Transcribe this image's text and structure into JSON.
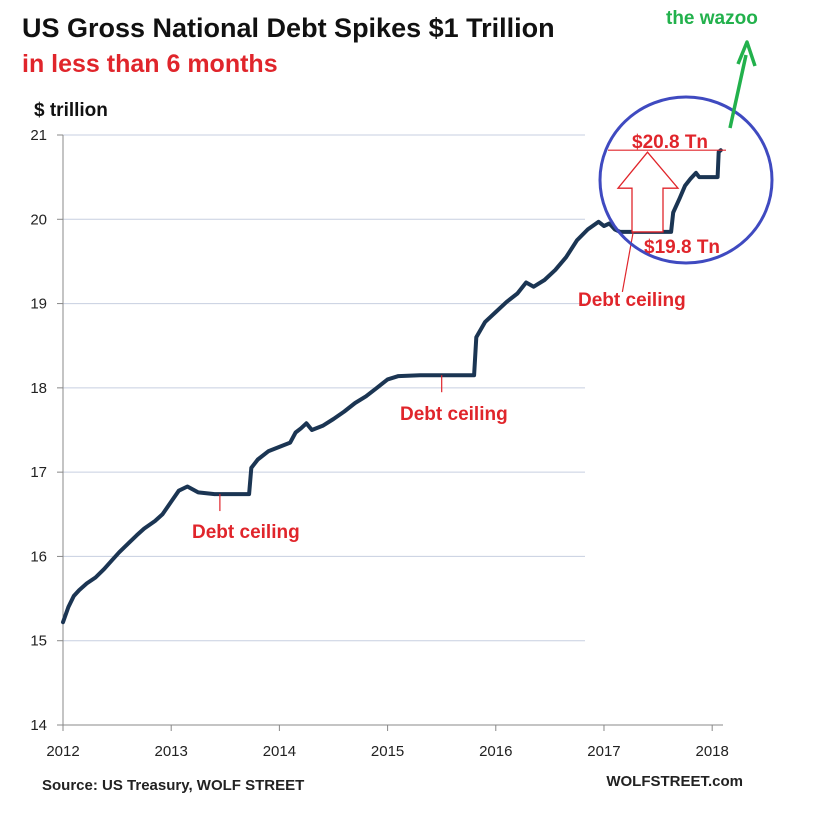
{
  "chart_data": {
    "type": "line",
    "title": "US Gross National Debt Spikes $1 Trillion",
    "subtitle": "in less than 6 months",
    "ylabel": "$ trillion",
    "xlabel": "",
    "xlim": [
      2012,
      2018.1
    ],
    "ylim": [
      14,
      21
    ],
    "x_ticks": [
      "2012",
      "2013",
      "2014",
      "2015",
      "2016",
      "2017",
      "2018"
    ],
    "y_ticks": [
      "14",
      "15",
      "16",
      "17",
      "18",
      "19",
      "20",
      "21"
    ],
    "grid": "horizontal",
    "legend": "none",
    "series": [
      {
        "points": [
          [
            2012.0,
            15.22
          ],
          [
            2012.05,
            15.4
          ],
          [
            2012.1,
            15.53
          ],
          [
            2012.15,
            15.6
          ],
          [
            2012.22,
            15.68
          ],
          [
            2012.3,
            15.75
          ],
          [
            2012.38,
            15.85
          ],
          [
            2012.45,
            15.95
          ],
          [
            2012.52,
            16.05
          ],
          [
            2012.6,
            16.15
          ],
          [
            2012.68,
            16.25
          ],
          [
            2012.75,
            16.33
          ],
          [
            2012.85,
            16.42
          ],
          [
            2012.92,
            16.5
          ],
          [
            2013.0,
            16.65
          ],
          [
            2013.07,
            16.78
          ],
          [
            2013.15,
            16.83
          ],
          [
            2013.25,
            16.76
          ],
          [
            2013.4,
            16.74
          ],
          [
            2013.6,
            16.74
          ],
          [
            2013.72,
            16.74
          ],
          [
            2013.74,
            17.05
          ],
          [
            2013.8,
            17.15
          ],
          [
            2013.9,
            17.25
          ],
          [
            2014.0,
            17.3
          ],
          [
            2014.1,
            17.35
          ],
          [
            2014.15,
            17.47
          ],
          [
            2014.2,
            17.52
          ],
          [
            2014.25,
            17.58
          ],
          [
            2014.3,
            17.5
          ],
          [
            2014.4,
            17.55
          ],
          [
            2014.5,
            17.63
          ],
          [
            2014.6,
            17.72
          ],
          [
            2014.7,
            17.82
          ],
          [
            2014.8,
            17.9
          ],
          [
            2014.9,
            18.0
          ],
          [
            2015.0,
            18.1
          ],
          [
            2015.1,
            18.14
          ],
          [
            2015.3,
            18.15
          ],
          [
            2015.6,
            18.15
          ],
          [
            2015.8,
            18.15
          ],
          [
            2015.82,
            18.6
          ],
          [
            2015.9,
            18.78
          ],
          [
            2016.0,
            18.9
          ],
          [
            2016.1,
            19.02
          ],
          [
            2016.2,
            19.12
          ],
          [
            2016.28,
            19.25
          ],
          [
            2016.35,
            19.2
          ],
          [
            2016.45,
            19.28
          ],
          [
            2016.55,
            19.4
          ],
          [
            2016.65,
            19.55
          ],
          [
            2016.75,
            19.75
          ],
          [
            2016.85,
            19.88
          ],
          [
            2016.95,
            19.97
          ],
          [
            2017.0,
            19.92
          ],
          [
            2017.05,
            19.95
          ],
          [
            2017.1,
            19.88
          ],
          [
            2017.15,
            19.85
          ],
          [
            2017.4,
            19.85
          ],
          [
            2017.62,
            19.85
          ],
          [
            2017.64,
            20.08
          ],
          [
            2017.7,
            20.25
          ],
          [
            2017.75,
            20.4
          ],
          [
            2017.8,
            20.48
          ],
          [
            2017.85,
            20.55
          ],
          [
            2017.88,
            20.5
          ],
          [
            2017.95,
            20.5
          ],
          [
            2018.05,
            20.5
          ],
          [
            2018.06,
            20.8
          ],
          [
            2018.08,
            20.82
          ]
        ]
      }
    ],
    "annotations": [
      {
        "text": "Debt ceiling",
        "x": 2013.45,
        "y": 16.74
      },
      {
        "text": "Debt ceiling",
        "x": 2015.5,
        "y": 18.15
      },
      {
        "text": "Debt ceiling",
        "x": 2017.27,
        "y": 19.85
      },
      {
        "text": "$20.8 Tn",
        "x": 2017.4,
        "y": 20.82
      },
      {
        "text": "$19.8 Tn",
        "x": 2017.7,
        "y": 19.85
      },
      {
        "text": "the wazoo",
        "x": 2018.2,
        "y": 21.55
      }
    ]
  },
  "colors": {
    "line": "#1b3553",
    "annotation": "#e0252b",
    "circle": "#3f4ac0",
    "wazoo": "#22b14c",
    "grid": "#c7cfe0",
    "axis": "#888888"
  },
  "footer": {
    "source": "Source: US Treasury, WOLF STREET",
    "brand": "WOLFSTREET.com"
  }
}
